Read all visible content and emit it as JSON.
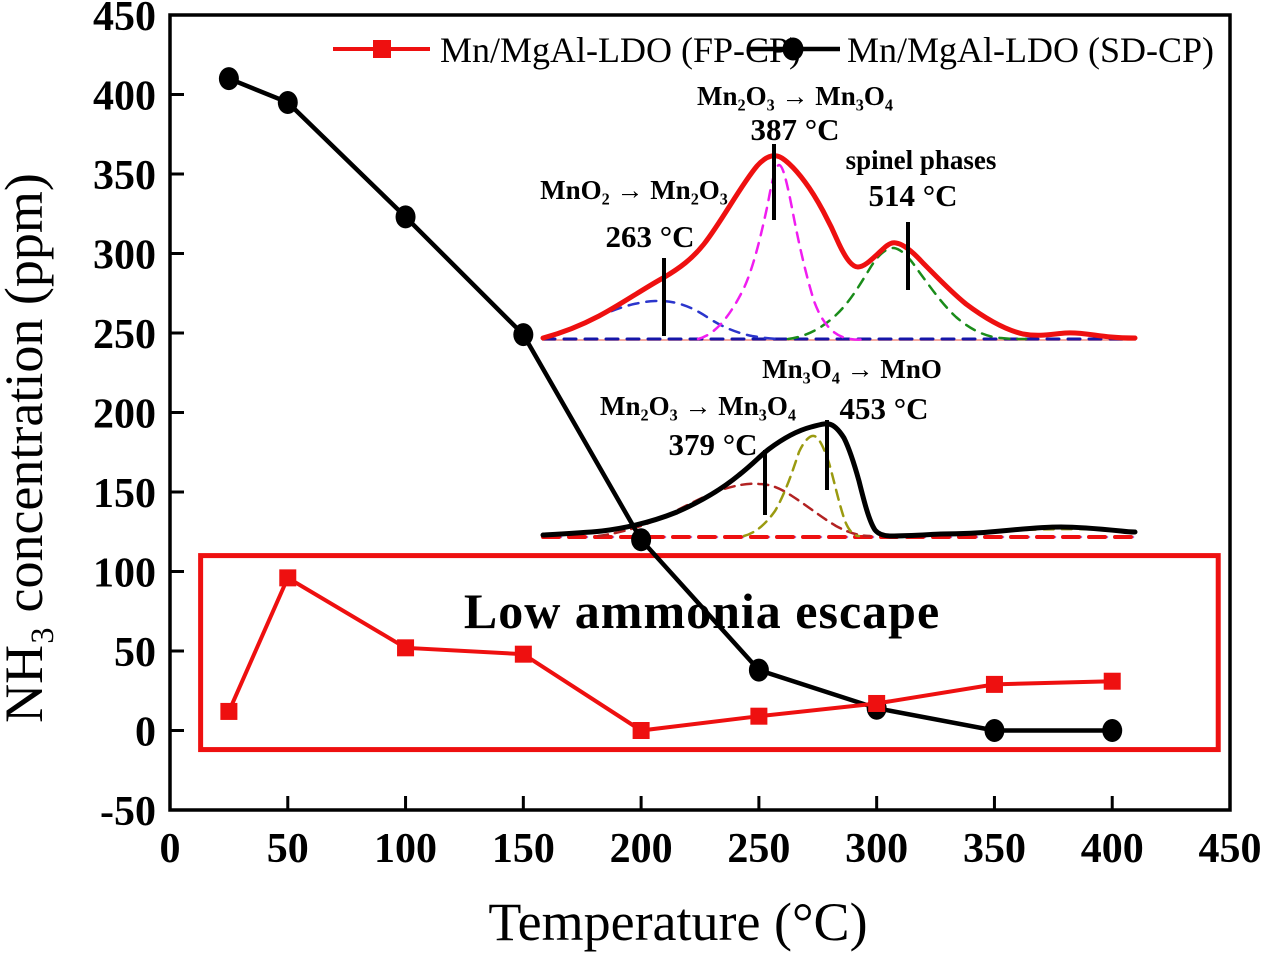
{
  "chart_data": {
    "type": "line",
    "title": "",
    "xlabel": "Temperature (°C)",
    "ylabel": "NH₃ concentration (ppm)",
    "xlim": [
      0,
      450
    ],
    "ylim": [
      -50,
      450
    ],
    "xticks": [
      0,
      50,
      100,
      150,
      200,
      250,
      300,
      350,
      400,
      450
    ],
    "yticks": [
      -50,
      0,
      50,
      100,
      150,
      200,
      250,
      300,
      350,
      400,
      450
    ],
    "grid": false,
    "legend_position": "top-center",
    "series": [
      {
        "name": "Mn/MgAl-LDO (FP-CP)",
        "color": "#ee1010",
        "marker": "square",
        "x": [
          25,
          50,
          100,
          150,
          200,
          250,
          300,
          350,
          400
        ],
        "values": [
          12,
          96,
          52,
          48,
          0,
          9,
          17,
          29,
          31
        ]
      },
      {
        "name": "Mn/MgAl-LDO (SD-CP)",
        "color": "#000000",
        "marker": "circle",
        "x": [
          25,
          50,
          100,
          150,
          200,
          250,
          300,
          350,
          400
        ],
        "values": [
          410,
          395,
          323,
          249,
          120,
          38,
          14,
          0,
          0
        ]
      }
    ],
    "annotations": {
      "escape_box": {
        "label": "Low ammonia escape",
        "color": "#ee1010",
        "x": [
          13,
          445
        ],
        "y": [
          -12,
          110
        ]
      },
      "insets": [
        {
          "id": "top",
          "curve_color": "#ee1010",
          "peaks": [
            {
              "transition": "MnO₂ → Mn₂O₃",
              "temperature": "263 °C",
              "component_color": "#2b35cc"
            },
            {
              "transition": "Mn₂O₃ → Mn₃O₄",
              "temperature": "387 °C",
              "component_color": "#f01df0"
            },
            {
              "transition": "spinel phases",
              "temperature": "514 °C",
              "component_color": "#1a8c1a"
            }
          ]
        },
        {
          "id": "bottom",
          "curve_color": "#000000",
          "peaks": [
            {
              "transition": "Mn₂O₃ → Mn₃O₄",
              "temperature": "379 °C",
              "component_color": "#b22222"
            },
            {
              "transition": "Mn₃O₄ → MnO",
              "temperature": "453 °C",
              "component_color": "#9a9a10"
            }
          ]
        }
      ]
    }
  }
}
